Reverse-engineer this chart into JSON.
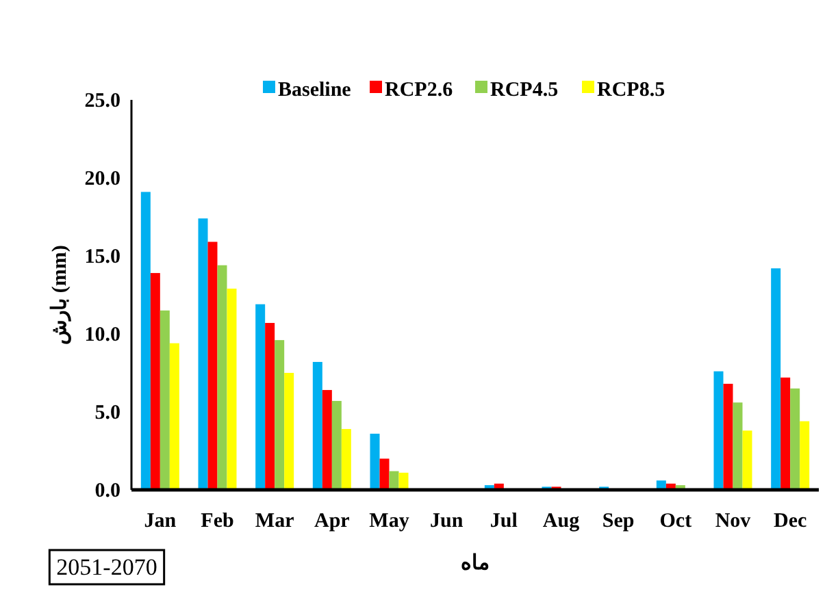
{
  "chart_data": {
    "type": "bar",
    "xlabel": "ماه",
    "ylabel": "بارش (mm)",
    "annotations": [
      "2051-2070"
    ],
    "categories": [
      "Jan",
      "Feb",
      "Mar",
      "Apr",
      "May",
      "Jun",
      "Jul",
      "Aug",
      "Sep",
      "Oct",
      "Nov",
      "Dec"
    ],
    "series": [
      {
        "name": "Baseline",
        "color": "#00b0f0",
        "values": [
          19.1,
          17.4,
          11.9,
          8.2,
          3.6,
          null,
          0.3,
          0.2,
          0.2,
          0.6,
          7.6,
          14.2
        ]
      },
      {
        "name": "RCP2.6",
        "color": "#ff0000",
        "values": [
          13.9,
          15.9,
          10.7,
          6.4,
          2.0,
          null,
          0.4,
          0.2,
          null,
          0.4,
          6.8,
          7.2
        ]
      },
      {
        "name": "RCP4.5",
        "color": "#92d050",
        "values": [
          11.5,
          14.4,
          9.6,
          5.7,
          1.2,
          0,
          null,
          0,
          0,
          0.3,
          5.6,
          6.5
        ]
      },
      {
        "name": "RCP8.5",
        "color": "#ffff00",
        "values": [
          9.4,
          12.9,
          7.5,
          3.9,
          1.1,
          0,
          0,
          0,
          0,
          null,
          3.8,
          4.4
        ]
      }
    ],
    "ylim": [
      0,
      25
    ],
    "yticks": [
      {
        "value": 0,
        "label": "0.0"
      },
      {
        "value": 5,
        "label": "5.0"
      },
      {
        "value": 10,
        "label": "10.0"
      },
      {
        "value": 15,
        "label": "15.0"
      },
      {
        "value": 20,
        "label": "20.0"
      },
      {
        "value": 25,
        "label": "25.0"
      }
    ],
    "grid": false,
    "legend": "top"
  }
}
